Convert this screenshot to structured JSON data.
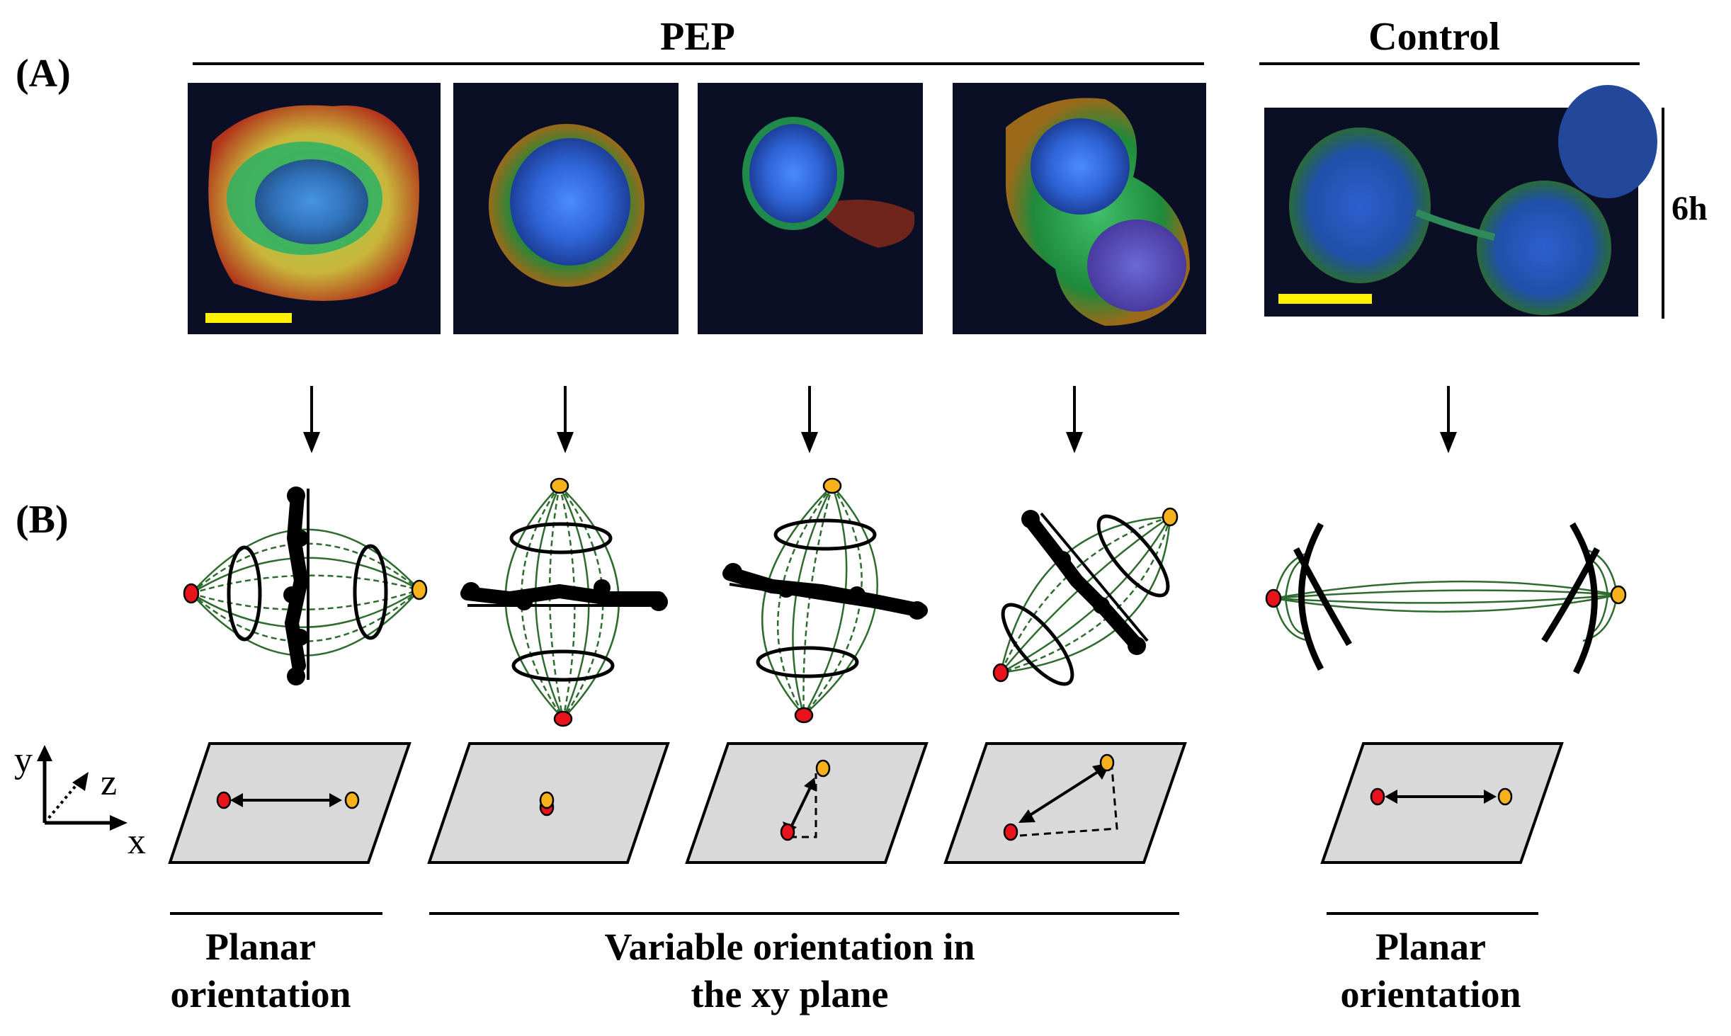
{
  "panels": {
    "a_label": "(A)",
    "b_label": "(B)"
  },
  "groups": {
    "treatment": "PEP",
    "control": "Control",
    "time": "6h"
  },
  "axes": {
    "x": "x",
    "y": "y",
    "z": "z"
  },
  "captions": {
    "left_line1": "Planar",
    "left_line2": "orientation",
    "middle_line1": "Variable orientation in",
    "middle_line2": "the xy plane",
    "right_line1": "Planar",
    "right_line2": "orientation"
  },
  "colors": {
    "scale_bar": "#fff200",
    "spindle": "#2e6b2e",
    "pole_red": "#e8141c",
    "pole_yellow": "#f5b21c",
    "plane": "#d9d9d9"
  }
}
